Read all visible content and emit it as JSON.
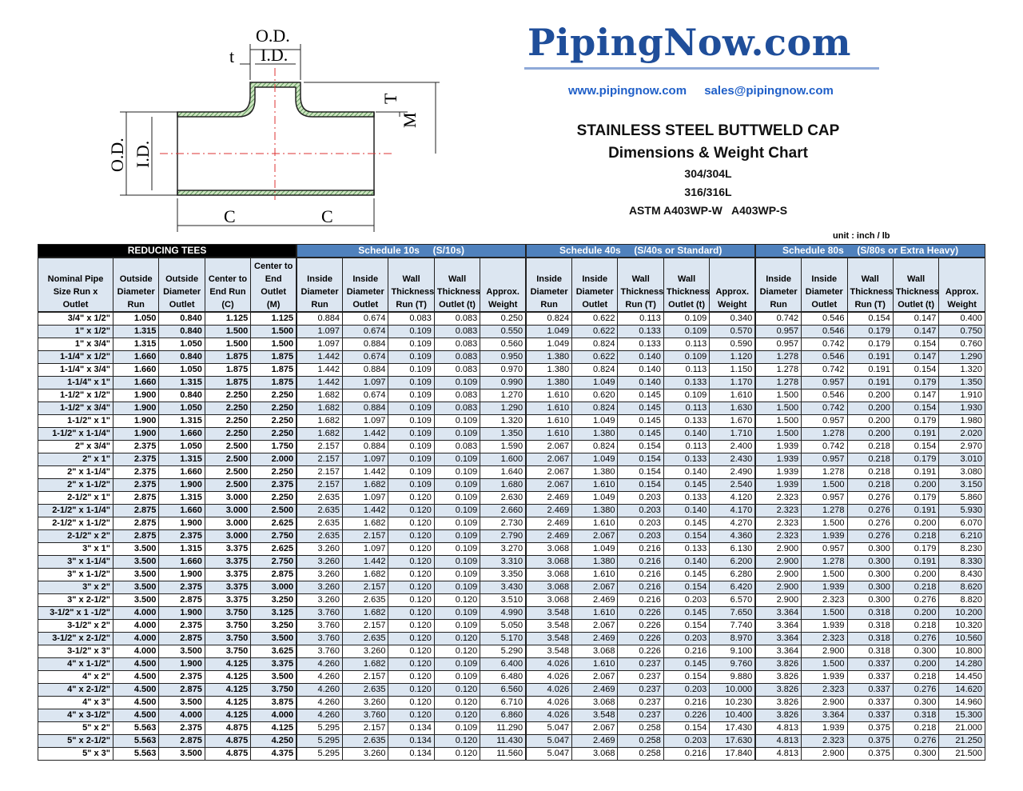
{
  "diagram": {
    "labels": {
      "od_top": "O.D.",
      "id_top": "I.D.",
      "t": "t",
      "T": "T",
      "M": "M",
      "od_left": "O.D.",
      "id_left": "I.D.",
      "c1": "C",
      "c2": "C"
    }
  },
  "logo": "PipingNow.com",
  "links": {
    "website": "www.pipingnow.com",
    "email": "sales@pipingnow.com"
  },
  "titles": [
    "STAINLESS STEEL BUTTWELD CAP",
    "Dimensions & Weight Chart",
    "304/304L",
    "316/316L",
    "ASTM A403WP-W   A403WP-S"
  ],
  "unit": "unit : inch / lb",
  "colors": {
    "group_header": "#4f81bd",
    "column_header": "#dce6f1",
    "alt_row": "#dce6f1",
    "logo": "#1f4e9a",
    "links": "#1f5fc8"
  },
  "table": {
    "groups": [
      "REDUCING TEES",
      "Schedule 10s     (S/10s)",
      "Schedule 40s     (S/40s or Standard)",
      "Schedule 80s     (S/80s or Extra Heavy)"
    ],
    "columns": [
      "Nominal Pipe Size Run x Outlet",
      "Outside Diameter Run",
      "Outside Diameter Outlet",
      "Center to End Run (C)",
      "Center to End Outlet (M)",
      "Inside Diameter Run",
      "Inside Diameter Outlet",
      "Wall Thickness Run (T)",
      "Wall Thickness Outlet (t)",
      "Approx. Weight",
      "Inside Diameter Run",
      "Inside Diameter Outlet",
      "Wall Thickness Run (T)",
      "Wall Thickness Outlet (t)",
      "Approx. Weight",
      "Inside Diameter Run",
      "Inside Diameter Outlet",
      "Wall Thickness Run (T)",
      "Wall Thickness Outlet (t)",
      "Approx. Weight"
    ],
    "rows": [
      [
        "3/4\" x 1/2\"",
        "1.050",
        "0.840",
        "1.125",
        "1.125",
        "0.884",
        "0.674",
        "0.083",
        "0.083",
        "0.250",
        "0.824",
        "0.622",
        "0.113",
        "0.109",
        "0.340",
        "0.742",
        "0.546",
        "0.154",
        "0.147",
        "0.400"
      ],
      [
        "1\" x 1/2\"",
        "1.315",
        "0.840",
        "1.500",
        "1.500",
        "1.097",
        "0.674",
        "0.109",
        "0.083",
        "0.550",
        "1.049",
        "0.622",
        "0.133",
        "0.109",
        "0.570",
        "0.957",
        "0.546",
        "0.179",
        "0.147",
        "0.750"
      ],
      [
        "1\" x 3/4\"",
        "1.315",
        "1.050",
        "1.500",
        "1.500",
        "1.097",
        "0.884",
        "0.109",
        "0.083",
        "0.560",
        "1.049",
        "0.824",
        "0.133",
        "0.113",
        "0.590",
        "0.957",
        "0.742",
        "0.179",
        "0.154",
        "0.760"
      ],
      [
        "1-1/4\" x 1/2\"",
        "1.660",
        "0.840",
        "1.875",
        "1.875",
        "1.442",
        "0.674",
        "0.109",
        "0.083",
        "0.950",
        "1.380",
        "0.622",
        "0.140",
        "0.109",
        "1.120",
        "1.278",
        "0.546",
        "0.191",
        "0.147",
        "1.290"
      ],
      [
        "1-1/4\" x 3/4\"",
        "1.660",
        "1.050",
        "1.875",
        "1.875",
        "1.442",
        "0.884",
        "0.109",
        "0.083",
        "0.970",
        "1.380",
        "0.824",
        "0.140",
        "0.113",
        "1.150",
        "1.278",
        "0.742",
        "0.191",
        "0.154",
        "1.320"
      ],
      [
        "1-1/4\" x 1\"",
        "1.660",
        "1.315",
        "1.875",
        "1.875",
        "1.442",
        "1.097",
        "0.109",
        "0.109",
        "0.990",
        "1.380",
        "1.049",
        "0.140",
        "0.133",
        "1.170",
        "1.278",
        "0.957",
        "0.191",
        "0.179",
        "1.350"
      ],
      [
        "1-1/2\" x 1/2\"",
        "1.900",
        "0.840",
        "2.250",
        "2.250",
        "1.682",
        "0.674",
        "0.109",
        "0.083",
        "1.270",
        "1.610",
        "0.620",
        "0.145",
        "0.109",
        "1.610",
        "1.500",
        "0.546",
        "0.200",
        "0.147",
        "1.910"
      ],
      [
        "1-1/2\" x 3/4\"",
        "1.900",
        "1.050",
        "2.250",
        "2.250",
        "1.682",
        "0.884",
        "0.109",
        "0.083",
        "1.290",
        "1.610",
        "0.824",
        "0.145",
        "0.113",
        "1.630",
        "1.500",
        "0.742",
        "0.200",
        "0.154",
        "1.930"
      ],
      [
        "1-1/2\" x 1\"",
        "1.900",
        "1.315",
        "2.250",
        "2.250",
        "1.682",
        "1.097",
        "0.109",
        "0.109",
        "1.320",
        "1.610",
        "1.049",
        "0.145",
        "0.133",
        "1.670",
        "1.500",
        "0.957",
        "0.200",
        "0.179",
        "1.980"
      ],
      [
        "1-1/2\" x 1-1/4\"",
        "1.900",
        "1.660",
        "2.250",
        "2.250",
        "1.682",
        "1.442",
        "0.109",
        "0.109",
        "1.350",
        "1.610",
        "1.380",
        "0.145",
        "0.140",
        "1.710",
        "1.500",
        "1.278",
        "0.200",
        "0.191",
        "2.020"
      ],
      [
        "2\" x 3/4\"",
        "2.375",
        "1.050",
        "2.500",
        "1.750",
        "2.157",
        "0.884",
        "0.109",
        "0.083",
        "1.590",
        "2.067",
        "0.824",
        "0.154",
        "0.113",
        "2.400",
        "1.939",
        "0.742",
        "0.218",
        "0.154",
        "2.970"
      ],
      [
        "2\" x 1\"",
        "2.375",
        "1.315",
        "2.500",
        "2.000",
        "2.157",
        "1.097",
        "0.109",
        "0.109",
        "1.600",
        "2.067",
        "1.049",
        "0.154",
        "0.133",
        "2.430",
        "1.939",
        "0.957",
        "0.218",
        "0.179",
        "3.010"
      ],
      [
        "2\" x 1-1/4\"",
        "2.375",
        "1.660",
        "2.500",
        "2.250",
        "2.157",
        "1.442",
        "0.109",
        "0.109",
        "1.640",
        "2.067",
        "1.380",
        "0.154",
        "0.140",
        "2.490",
        "1.939",
        "1.278",
        "0.218",
        "0.191",
        "3.080"
      ],
      [
        "2\" x 1-1/2\"",
        "2.375",
        "1.900",
        "2.500",
        "2.375",
        "2.157",
        "1.682",
        "0.109",
        "0.109",
        "1.680",
        "2.067",
        "1.610",
        "0.154",
        "0.145",
        "2.540",
        "1.939",
        "1.500",
        "0.218",
        "0.200",
        "3.150"
      ],
      [
        "2-1/2\" x 1\"",
        "2.875",
        "1.315",
        "3.000",
        "2.250",
        "2.635",
        "1.097",
        "0.120",
        "0.109",
        "2.630",
        "2.469",
        "1.049",
        "0.203",
        "0.133",
        "4.120",
        "2.323",
        "0.957",
        "0.276",
        "0.179",
        "5.860"
      ],
      [
        "2-1/2\" x 1-1/4\"",
        "2.875",
        "1.660",
        "3.000",
        "2.500",
        "2.635",
        "1.442",
        "0.120",
        "0.109",
        "2.660",
        "2.469",
        "1.380",
        "0.203",
        "0.140",
        "4.170",
        "2.323",
        "1.278",
        "0.276",
        "0.191",
        "5.930"
      ],
      [
        "2-1/2\" x 1-1/2\"",
        "2.875",
        "1.900",
        "3.000",
        "2.625",
        "2.635",
        "1.682",
        "0.120",
        "0.109",
        "2.730",
        "2.469",
        "1.610",
        "0.203",
        "0.145",
        "4.270",
        "2.323",
        "1.500",
        "0.276",
        "0.200",
        "6.070"
      ],
      [
        "2-1/2\" x 2\"",
        "2.875",
        "2.375",
        "3.000",
        "2.750",
        "2.635",
        "2.157",
        "0.120",
        "0.109",
        "2.790",
        "2.469",
        "2.067",
        "0.203",
        "0.154",
        "4.360",
        "2.323",
        "1.939",
        "0.276",
        "0.218",
        "6.210"
      ],
      [
        "3\" x 1\"",
        "3.500",
        "1.315",
        "3.375",
        "2.625",
        "3.260",
        "1.097",
        "0.120",
        "0.109",
        "3.270",
        "3.068",
        "1.049",
        "0.216",
        "0.133",
        "6.130",
        "2.900",
        "0.957",
        "0.300",
        "0.179",
        "8.230"
      ],
      [
        "3\" x 1-1/4\"",
        "3.500",
        "1.660",
        "3.375",
        "2.750",
        "3.260",
        "1.442",
        "0.120",
        "0.109",
        "3.310",
        "3.068",
        "1.380",
        "0.216",
        "0.140",
        "6.200",
        "2.900",
        "1.278",
        "0.300",
        "0.191",
        "8.330"
      ],
      [
        "3\" x 1-1/2\"",
        "3.500",
        "1.900",
        "3.375",
        "2.875",
        "3.260",
        "1.682",
        "0.120",
        "0.109",
        "3.350",
        "3.068",
        "1.610",
        "0.216",
        "0.145",
        "6.280",
        "2.900",
        "1.500",
        "0.300",
        "0.200",
        "8.430"
      ],
      [
        "3\" x 2\"",
        "3.500",
        "2.375",
        "3.375",
        "3.000",
        "3.260",
        "2.157",
        "0.120",
        "0.109",
        "3.430",
        "3.068",
        "2.067",
        "0.216",
        "0.154",
        "6.420",
        "2.900",
        "1.939",
        "0.300",
        "0.218",
        "8.620"
      ],
      [
        "3\" x 2-1/2\"",
        "3.500",
        "2.875",
        "3.375",
        "3.250",
        "3.260",
        "2.635",
        "0.120",
        "0.120",
        "3.510",
        "3.068",
        "2.469",
        "0.216",
        "0.203",
        "6.570",
        "2.900",
        "2.323",
        "0.300",
        "0.276",
        "8.820"
      ],
      [
        "3-1/2\" x 1 -1/2\"",
        "4.000",
        "1.900",
        "3.750",
        "3.125",
        "3.760",
        "1.682",
        "0.120",
        "0.109",
        "4.990",
        "3.548",
        "1.610",
        "0.226",
        "0.145",
        "7.650",
        "3.364",
        "1.500",
        "0.318",
        "0.200",
        "10.200"
      ],
      [
        "3-1/2\" x 2\"",
        "4.000",
        "2.375",
        "3.750",
        "3.250",
        "3.760",
        "2.157",
        "0.120",
        "0.109",
        "5.050",
        "3.548",
        "2.067",
        "0.226",
        "0.154",
        "7.740",
        "3.364",
        "1.939",
        "0.318",
        "0.218",
        "10.320"
      ],
      [
        "3-1/2\" x 2-1/2\"",
        "4.000",
        "2.875",
        "3.750",
        "3.500",
        "3.760",
        "2.635",
        "0.120",
        "0.120",
        "5.170",
        "3.548",
        "2.469",
        "0.226",
        "0.203",
        "8.970",
        "3.364",
        "2.323",
        "0.318",
        "0.276",
        "10.560"
      ],
      [
        "3-1/2\" x 3\"",
        "4.000",
        "3.500",
        "3.750",
        "3.625",
        "3.760",
        "3.260",
        "0.120",
        "0.120",
        "5.290",
        "3.548",
        "3.068",
        "0.226",
        "0.216",
        "9.100",
        "3.364",
        "2.900",
        "0.318",
        "0.300",
        "10.800"
      ],
      [
        "4\" x 1-1/2\"",
        "4.500",
        "1.900",
        "4.125",
        "3.375",
        "4.260",
        "1.682",
        "0.120",
        "0.109",
        "6.400",
        "4.026",
        "1.610",
        "0.237",
        "0.145",
        "9.760",
        "3.826",
        "1.500",
        "0.337",
        "0.200",
        "14.280"
      ],
      [
        "4\" x 2\"",
        "4.500",
        "2.375",
        "4.125",
        "3.500",
        "4.260",
        "2.157",
        "0.120",
        "0.109",
        "6.480",
        "4.026",
        "2.067",
        "0.237",
        "0.154",
        "9.880",
        "3.826",
        "1.939",
        "0.337",
        "0.218",
        "14.450"
      ],
      [
        "4\" x 2-1/2\"",
        "4.500",
        "2.875",
        "4.125",
        "3.750",
        "4.260",
        "2.635",
        "0.120",
        "0.120",
        "6.560",
        "4.026",
        "2.469",
        "0.237",
        "0.203",
        "10.000",
        "3.826",
        "2.323",
        "0.337",
        "0.276",
        "14.620"
      ],
      [
        "4\" x 3\"",
        "4.500",
        "3.500",
        "4.125",
        "3.875",
        "4.260",
        "3.260",
        "0.120",
        "0.120",
        "6.710",
        "4.026",
        "3.068",
        "0.237",
        "0.216",
        "10.230",
        "3.826",
        "2.900",
        "0.337",
        "0.300",
        "14.960"
      ],
      [
        "4\" x 3-1/2\"",
        "4.500",
        "4.000",
        "4.125",
        "4.000",
        "4.260",
        "3.760",
        "0.120",
        "0.120",
        "6.860",
        "4.026",
        "3.548",
        "0.237",
        "0.226",
        "10.400",
        "3.826",
        "3.364",
        "0.337",
        "0.318",
        "15.300"
      ],
      [
        "5\" x 2\"",
        "5.563",
        "2.375",
        "4.875",
        "4.125",
        "5.295",
        "2.157",
        "0.134",
        "0.109",
        "11.290",
        "5.047",
        "2.067",
        "0.258",
        "0.154",
        "17.430",
        "4.813",
        "1.939",
        "0.375",
        "0.218",
        "21.000"
      ],
      [
        "5\" x 2-1/2\"",
        "5.563",
        "2.875",
        "4.875",
        "4.250",
        "5.295",
        "2.635",
        "0.134",
        "0.120",
        "11.430",
        "5.047",
        "2.469",
        "0.258",
        "0.203",
        "17.630",
        "4.813",
        "2.323",
        "0.375",
        "0.276",
        "21.250"
      ],
      [
        "5\" x 3\"",
        "5.563",
        "3.500",
        "4.875",
        "4.375",
        "5.295",
        "3.260",
        "0.134",
        "0.120",
        "11.560",
        "5.047",
        "3.068",
        "0.258",
        "0.216",
        "17.840",
        "4.813",
        "2.900",
        "0.375",
        "0.300",
        "21.500"
      ]
    ]
  }
}
